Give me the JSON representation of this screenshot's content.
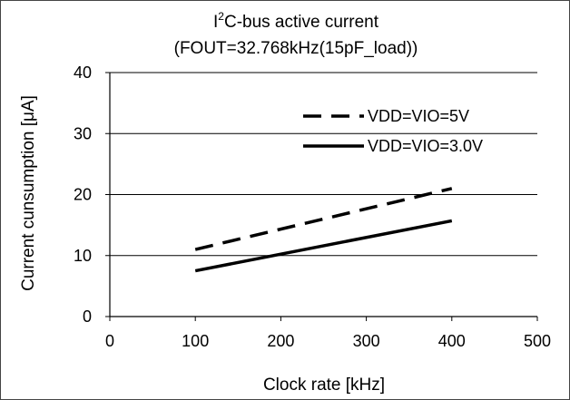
{
  "chart_data": {
    "type": "line",
    "title_lines": [
      "I²C-bus active current",
      "(FOUT=32.768kHz(15pF_load))"
    ],
    "xlabel": "Clock rate [kHz]",
    "ylabel": "Current cunsumption [μA]",
    "xlim": [
      0,
      500
    ],
    "ylim": [
      0,
      40
    ],
    "xticks": [
      0,
      100,
      200,
      300,
      400,
      500
    ],
    "yticks": [
      0,
      10,
      20,
      30,
      40
    ],
    "grid": "horizontal",
    "legend_position": "top-right",
    "series": [
      {
        "name": "VDD=VIO=5V",
        "style": "dashed",
        "color": "#000000",
        "x": [
          100,
          400
        ],
        "y": [
          11,
          21
        ]
      },
      {
        "name": "VDD=VIO=3.0V",
        "style": "solid",
        "color": "#000000",
        "x": [
          100,
          400
        ],
        "y": [
          7.5,
          15.7
        ]
      }
    ]
  }
}
